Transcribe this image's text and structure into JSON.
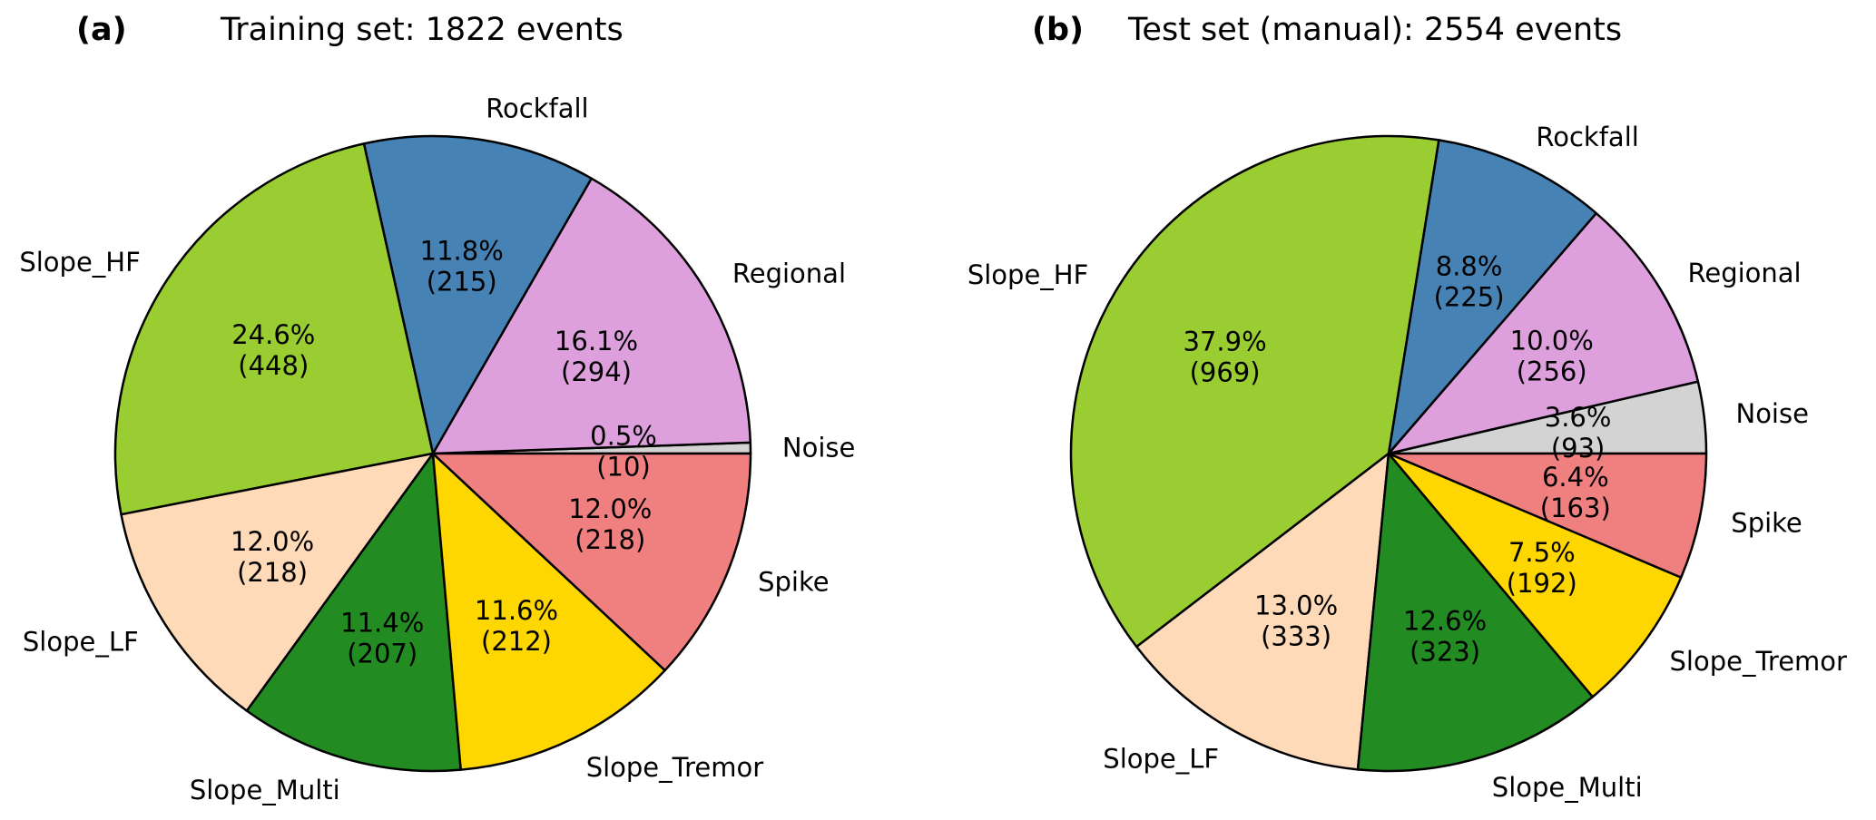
{
  "chart_data": [
    {
      "type": "pie",
      "panel": "(a)",
      "title": "Training set: 1822 events",
      "total": 1822,
      "start_angle_deg": 0,
      "direction": "counterclockwise",
      "slices": [
        {
          "label": "Noise",
          "value": 10,
          "percent": "0.5%",
          "count": "(10)",
          "color": "#d3d3d3"
        },
        {
          "label": "Regional",
          "value": 294,
          "percent": "16.1%",
          "count": "(294)",
          "color": "#dda0dd"
        },
        {
          "label": "Rockfall",
          "value": 215,
          "percent": "11.8%",
          "count": "(215)",
          "color": "#4682b4"
        },
        {
          "label": "Slope_HF",
          "value": 448,
          "percent": "24.6%",
          "count": "(448)",
          "color": "#9acd32"
        },
        {
          "label": "Slope_LF",
          "value": 218,
          "percent": "12.0%",
          "count": "(218)",
          "color": "#ffdab9"
        },
        {
          "label": "Slope_Multi",
          "value": 207,
          "percent": "11.4%",
          "count": "(207)",
          "color": "#228b22"
        },
        {
          "label": "Slope_Tremor",
          "value": 212,
          "percent": "11.6%",
          "count": "(212)",
          "color": "#ffd700"
        },
        {
          "label": "Spike",
          "value": 218,
          "percent": "12.0%",
          "count": "(218)",
          "color": "#f08080"
        }
      ]
    },
    {
      "type": "pie",
      "panel": "(b)",
      "title": "Test set (manual): 2554 events",
      "total": 2554,
      "start_angle_deg": 0,
      "direction": "counterclockwise",
      "slices": [
        {
          "label": "Noise",
          "value": 93,
          "percent": "3.6%",
          "count": "(93)",
          "color": "#d3d3d3"
        },
        {
          "label": "Regional",
          "value": 256,
          "percent": "10.0%",
          "count": "(256)",
          "color": "#dda0dd"
        },
        {
          "label": "Rockfall",
          "value": 225,
          "percent": "8.8%",
          "count": "(225)",
          "color": "#4682b4"
        },
        {
          "label": "Slope_HF",
          "value": 969,
          "percent": "37.9%",
          "count": "(969)",
          "color": "#9acd32"
        },
        {
          "label": "Slope_LF",
          "value": 333,
          "percent": "13.0%",
          "count": "(333)",
          "color": "#ffdab9"
        },
        {
          "label": "Slope_Multi",
          "value": 323,
          "percent": "12.6%",
          "count": "(323)",
          "color": "#228b22"
        },
        {
          "label": "Slope_Tremor",
          "value": 192,
          "percent": "7.5%",
          "count": "(192)",
          "color": "#ffd700"
        },
        {
          "label": "Spike",
          "value": 163,
          "percent": "6.4%",
          "count": "(163)",
          "color": "#f08080"
        }
      ]
    }
  ]
}
